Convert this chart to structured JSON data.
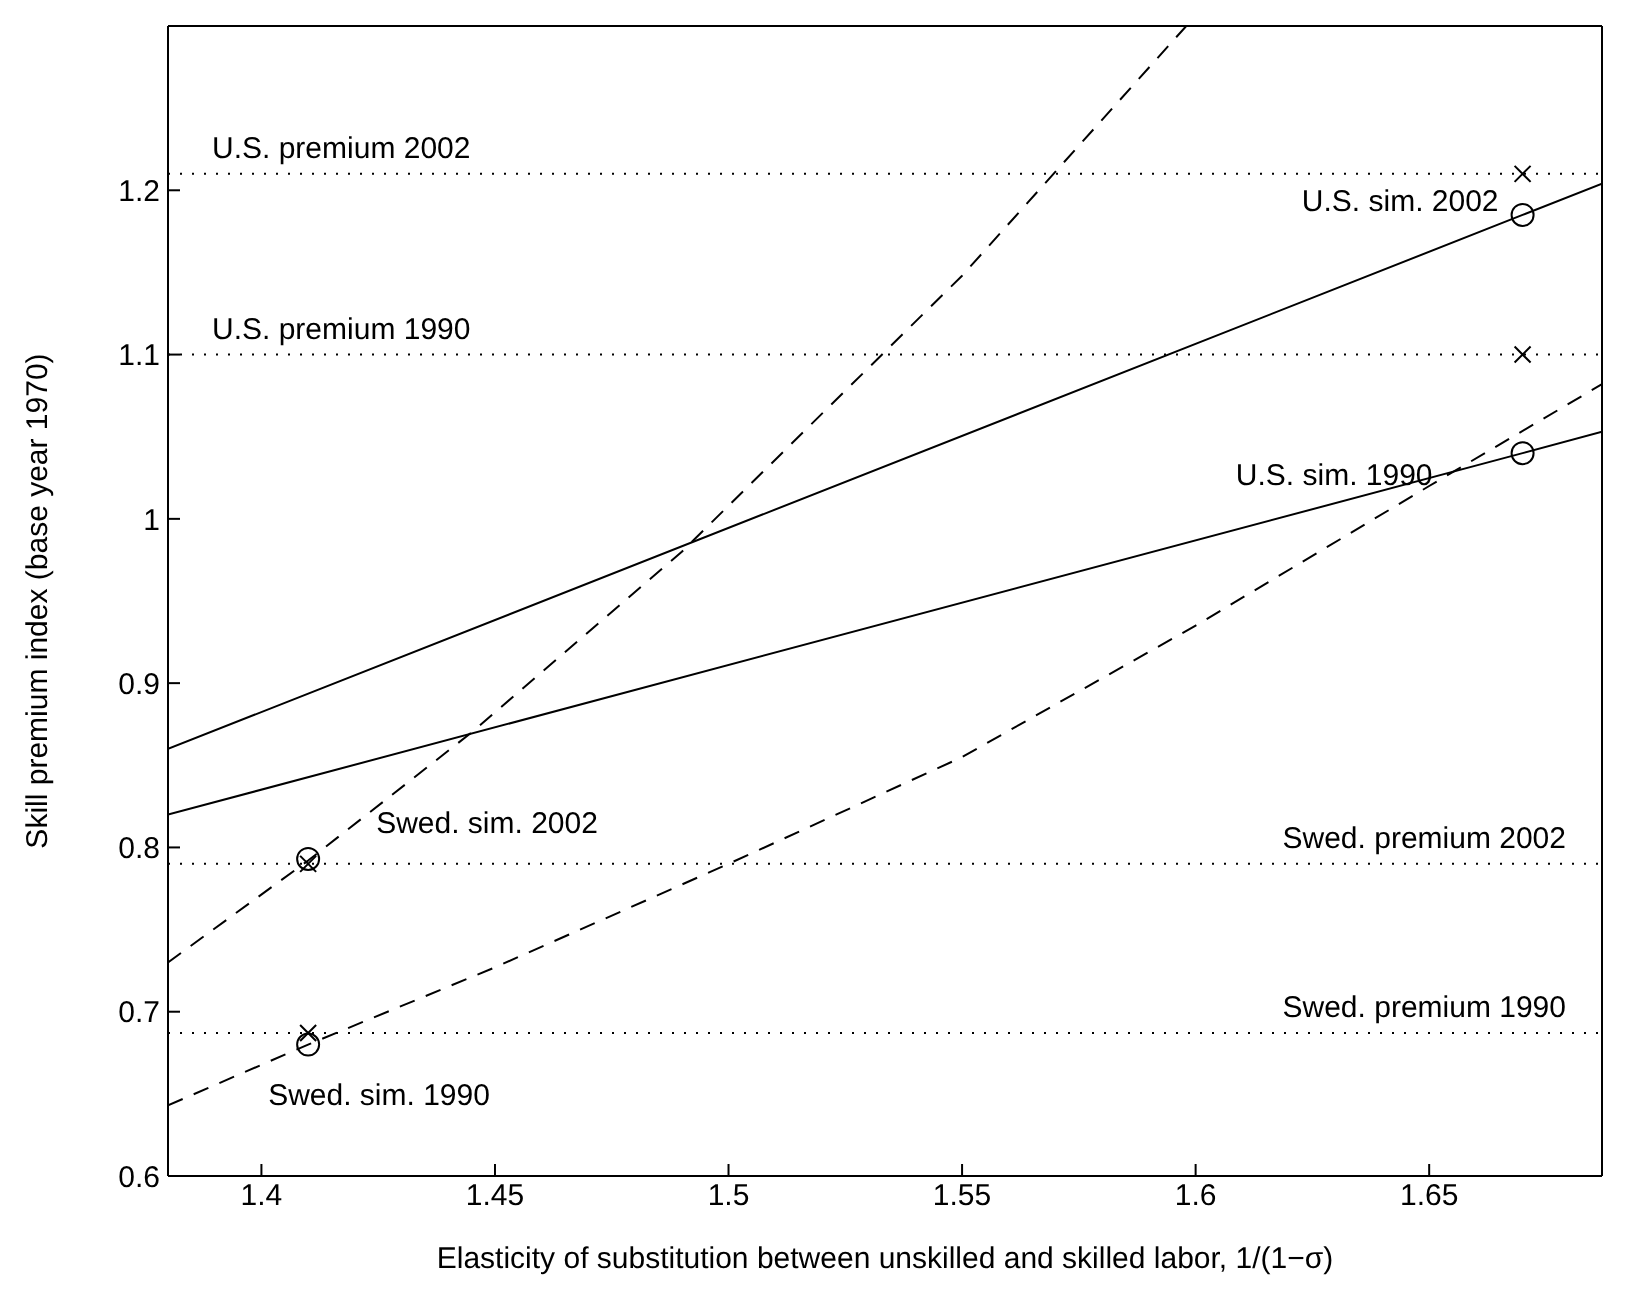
{
  "chart_data": {
    "type": "line",
    "xlabel": "Elasticity of substitution between unskilled and skilled labor, 1/(1−σ)",
    "ylabel": "Skill premium index (base year 1970)",
    "xlim": [
      1.38,
      1.687
    ],
    "ylim": [
      0.6,
      1.3
    ],
    "xticks": [
      1.4,
      1.45,
      1.5,
      1.55,
      1.6,
      1.65
    ],
    "yticks": [
      0.6,
      0.7,
      0.8,
      0.9,
      {
        "value": 1.0,
        "label": "1"
      },
      1.1,
      1.2
    ],
    "grid": false,
    "legend": false,
    "series": [
      {
        "name": "U.S. sim. 2002",
        "line_style": "solid",
        "marker": "none",
        "color": "#000000",
        "x": [
          1.38,
          1.67,
          1.687
        ],
        "values": [
          0.86,
          1.185,
          1.204
        ]
      },
      {
        "name": "U.S. sim. 1990",
        "line_style": "solid",
        "marker": "none",
        "color": "#000000",
        "x": [
          1.38,
          1.67,
          1.687
        ],
        "values": [
          0.82,
          1.04,
          1.053
        ]
      },
      {
        "name": "Swed. sim. 2002",
        "line_style": "dashed",
        "marker": "none",
        "color": "#000000",
        "x": [
          1.38,
          1.41,
          1.445,
          1.49,
          1.55,
          1.598
        ],
        "values": [
          0.73,
          0.792,
          0.87,
          0.98,
          1.148,
          1.3
        ]
      },
      {
        "name": "Swed. sim. 1990",
        "line_style": "dashed",
        "marker": "none",
        "color": "#000000",
        "x": [
          1.38,
          1.41,
          1.45,
          1.5,
          1.55,
          1.6,
          1.65,
          1.687
        ],
        "values": [
          0.643,
          0.68,
          0.727,
          0.79,
          0.855,
          0.935,
          1.02,
          1.082
        ]
      },
      {
        "type": "scatter",
        "marker": "circle",
        "color": "#000000",
        "x": [
          1.67,
          1.67,
          1.41,
          1.41
        ],
        "values": [
          1.185,
          1.04,
          0.793,
          0.68
        ]
      },
      {
        "type": "scatter",
        "marker": "cross",
        "color": "#000000",
        "x": [
          1.67,
          1.67,
          1.41,
          1.41
        ],
        "values": [
          1.21,
          1.1,
          0.79,
          0.687
        ]
      }
    ],
    "ref_lines": [
      {
        "axis": "y",
        "value": 1.21,
        "label": "U.S. premium 2002",
        "line_style": "dotted",
        "color": "#000000"
      },
      {
        "axis": "y",
        "value": 1.1,
        "label": "U.S. premium 1990",
        "line_style": "dotted",
        "color": "#000000"
      },
      {
        "axis": "y",
        "value": 0.79,
        "label": "Swed. premium 2002",
        "line_style": "dotted",
        "color": "#000000"
      },
      {
        "axis": "y",
        "value": 0.687,
        "label": "Swed. premium 1990",
        "line_style": "dotted",
        "color": "#000000"
      }
    ]
  }
}
